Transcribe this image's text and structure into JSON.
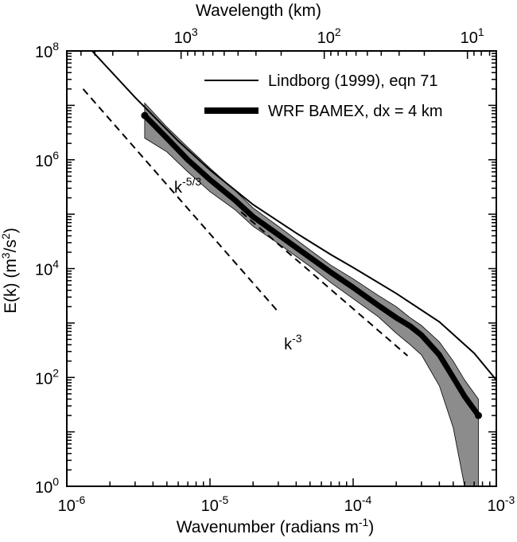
{
  "chart_data": {
    "type": "line",
    "xlabel": "Wavenumber (radians m",
    "xlabel_sup": "-1",
    "xlabel_end": ")",
    "ylabel": "E(k) (m",
    "ylabel_sup1": "3",
    "ylabel_mid": "/s",
    "ylabel_sup2": "2",
    "ylabel_end": ")",
    "top_axis_label": "Wavelength (km)",
    "x_scale": "log",
    "y_scale": "log",
    "xlim": [
      1e-06,
      0.001
    ],
    "ylim": [
      1,
      100000000.0
    ],
    "x_ticks": [
      {
        "value": 1e-06,
        "base": "10",
        "exp": "-6"
      },
      {
        "value": 1e-05,
        "base": "10",
        "exp": "-5"
      },
      {
        "value": 0.0001,
        "base": "10",
        "exp": "-4"
      },
      {
        "value": 0.001,
        "base": "10",
        "exp": "-3"
      }
    ],
    "y_ticks": [
      {
        "value": 1,
        "base": "10",
        "exp": "0"
      },
      {
        "value": 100,
        "base": "10",
        "exp": "2"
      },
      {
        "value": 10000,
        "base": "10",
        "exp": "4"
      },
      {
        "value": 1000000,
        "base": "10",
        "exp": "6"
      },
      {
        "value": 100000000,
        "base": "10",
        "exp": "8"
      }
    ],
    "top_ticks": [
      {
        "wavelength_km": 1000,
        "base": "10",
        "exp": "3"
      },
      {
        "wavelength_km": 100,
        "base": "10",
        "exp": "2"
      },
      {
        "wavelength_km": 10,
        "base": "10",
        "exp": "1"
      }
    ],
    "legend": [
      {
        "label": "Lindborg (1999), eqn 71",
        "style": "thin"
      },
      {
        "label": "WRF BAMEX, dx = 4 km",
        "style": "thick"
      }
    ],
    "legend_position": "top-right",
    "series": [
      {
        "name": "Lindborg (1999), eqn 71",
        "style": "thin",
        "points": [
          [
            1.5e-06,
            100000000.0
          ],
          [
            3e-06,
            14000000.0
          ],
          [
            6e-06,
            2200000.0
          ],
          [
            1e-05,
            650000.0
          ],
          [
            2e-05,
            150000.0
          ],
          [
            4e-05,
            45000.0
          ],
          [
            7e-05,
            18000.0
          ],
          [
            0.0001,
            10500.0
          ],
          [
            0.0002,
            3500.0
          ],
          [
            0.0004,
            1050.0
          ],
          [
            0.0007,
            280.0
          ],
          [
            0.001,
            90.0
          ]
        ]
      },
      {
        "name": "WRF BAMEX, dx = 4 km",
        "style": "thick",
        "points": [
          [
            3.5e-06,
            6500000.0
          ],
          [
            5e-06,
            2500000.0
          ],
          [
            7e-06,
            1000000.0
          ],
          [
            1e-05,
            430000.0
          ],
          [
            1.5e-05,
            180000.0
          ],
          [
            2e-05,
            90000.0
          ],
          [
            3e-05,
            42000.0
          ],
          [
            5e-05,
            16000.0
          ],
          [
            7e-05,
            8500.0
          ],
          [
            0.0001,
            4500.0
          ],
          [
            0.00015,
            2100.0
          ],
          [
            0.0002,
            1250.0
          ],
          [
            0.00025,
            880.0
          ],
          [
            0.0003,
            600.0
          ],
          [
            0.0004,
            260.0
          ],
          [
            0.0005,
            100.0
          ],
          [
            0.0006,
            45.0
          ],
          [
            0.00075,
            20.0
          ]
        ]
      },
      {
        "name": "",
        "style": "band",
        "upper": [
          [
            3.5e-06,
            11000000.0
          ],
          [
            5e-06,
            4000000.0
          ],
          [
            7e-06,
            1700000.0
          ],
          [
            1e-05,
            700000.0
          ],
          [
            1.5e-05,
            270000.0
          ],
          [
            2e-05,
            130000.0
          ],
          [
            3e-05,
            60000.0
          ],
          [
            5e-05,
            22000.0
          ],
          [
            7e-05,
            11500.0
          ],
          [
            0.0001,
            6500.0
          ],
          [
            0.00015,
            3200.0
          ],
          [
            0.0002,
            2000.0
          ],
          [
            0.00025,
            1250.0
          ],
          [
            0.0003,
            900.0
          ],
          [
            0.0004,
            450.0
          ],
          [
            0.0005,
            200.0
          ],
          [
            0.0006,
            90.0
          ],
          [
            0.00075,
            40.0
          ]
        ],
        "lower": [
          [
            3.5e-06,
            2500000.0
          ],
          [
            5e-06,
            1400000.0
          ],
          [
            7e-06,
            600000.0
          ],
          [
            1e-05,
            260000.0
          ],
          [
            1.5e-05,
            120000.0
          ],
          [
            2e-05,
            60000.0
          ],
          [
            3e-05,
            29000.0
          ],
          [
            5e-05,
            11000.0
          ],
          [
            7e-05,
            5500.0
          ],
          [
            0.0001,
            2800.0
          ],
          [
            0.00015,
            1300.0
          ],
          [
            0.0002,
            650.0
          ],
          [
            0.00025,
            400.0
          ],
          [
            0.0003,
            260.0
          ],
          [
            0.0004,
            70.0
          ],
          [
            0.0005,
            12.0
          ],
          [
            0.0006,
            1.0
          ],
          [
            0.00075,
            1.0
          ]
        ]
      }
    ],
    "reference_lines": [
      {
        "label_base": "k",
        "label_exp": "-3",
        "slope": -3,
        "points": [
          [
            1.3e-06,
            20000000.0
          ],
          [
            3e-05,
            1600.0
          ]
        ]
      },
      {
        "label_base": "k",
        "label_exp": "-5/3",
        "slope": -1.6667,
        "points": [
          [
            1.65e-05,
            110000.0
          ],
          [
            0.00024,
            250.0
          ]
        ]
      }
    ],
    "annotations": [
      {
        "base": "k",
        "exp": "-5/3",
        "x": 7e-06,
        "y": 250000.0
      },
      {
        "base": "k",
        "exp": "-3",
        "x": 3.8e-05,
        "y": 330.0
      }
    ]
  }
}
